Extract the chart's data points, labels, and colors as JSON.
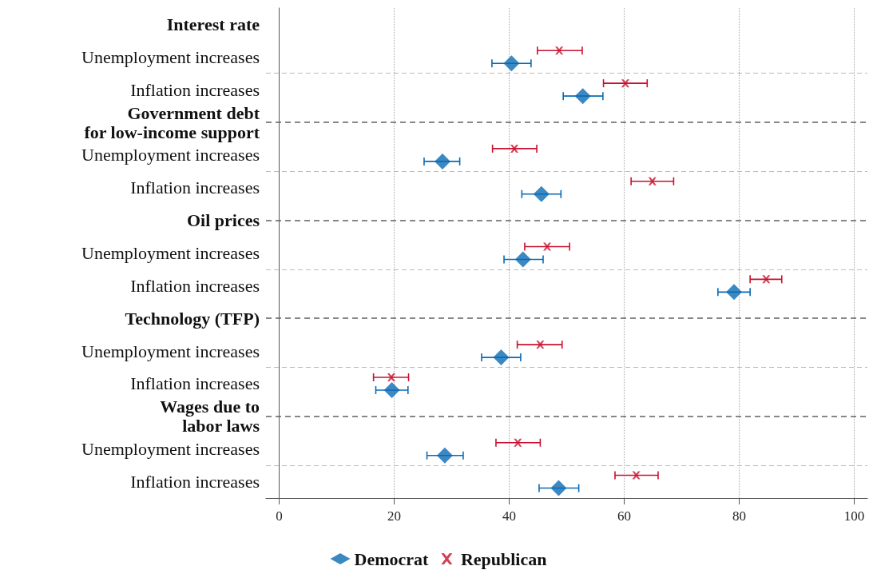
{
  "chart_data": {
    "type": "scatter",
    "orientation": "horizontal",
    "categories": [
      "Interest rate",
      "Unemployment increases",
      "Inflation increases",
      "Government debt\nfor low-income support",
      "Unemployment increases",
      "Inflation increases",
      "Oil prices",
      "Unemployment increases",
      "Inflation increases",
      "Technology (TFP)",
      "Unemployment increases",
      "Inflation increases",
      "Wages due to\nlabor laws",
      "Unemployment increases",
      "Inflation increases"
    ],
    "series": [
      {
        "name": "Democrat",
        "color": "#0a6ab4",
        "marker": "diamond",
        "values": [
          null,
          40.4,
          52.8,
          null,
          28.4,
          45.6,
          null,
          42.4,
          79.1,
          null,
          38.6,
          19.6,
          null,
          28.8,
          48.6
        ],
        "errors": [
          null,
          [
            37.0,
            43.8
          ],
          [
            49.4,
            56.3
          ],
          null,
          [
            25.2,
            31.4
          ],
          [
            42.2,
            49.0
          ],
          null,
          [
            39.1,
            45.9
          ],
          [
            76.3,
            81.9
          ],
          null,
          [
            35.2,
            42.0
          ],
          [
            16.8,
            22.4
          ],
          null,
          [
            25.7,
            32.0
          ],
          [
            45.2,
            52.1
          ]
        ]
      },
      {
        "name": "Republican",
        "color": "#c8102e",
        "marker": "cross",
        "values": [
          null,
          48.7,
          60.2,
          null,
          40.9,
          64.9,
          null,
          46.6,
          84.7,
          null,
          45.4,
          19.5,
          null,
          41.5,
          62.1
        ],
        "errors": [
          null,
          [
            44.9,
            52.7
          ],
          [
            56.4,
            64.0
          ],
          null,
          [
            37.1,
            44.8
          ],
          [
            61.2,
            68.6
          ],
          null,
          [
            42.7,
            50.5
          ],
          [
            81.9,
            87.4
          ],
          null,
          [
            41.4,
            49.2
          ],
          [
            16.4,
            22.5
          ],
          null,
          [
            37.7,
            45.4
          ],
          [
            58.4,
            65.9
          ]
        ]
      }
    ],
    "xlim": [
      -2.3,
      102.3
    ],
    "xticks": [
      0,
      20,
      40,
      60,
      80,
      100
    ],
    "grid": true,
    "legend": "bottom",
    "ref_lines": [
      {
        "axis": "y",
        "value": "Government debt\nfor low-income support",
        "color": "#606060",
        "line_style": "dashed"
      },
      {
        "axis": "y",
        "value": "Oil prices",
        "color": "#606060",
        "line_style": "dashed"
      },
      {
        "axis": "y",
        "value": "Technology (TFP)",
        "color": "#606060",
        "line_style": "dashed"
      },
      {
        "axis": "y",
        "value": "Wages due to\nlabor laws",
        "color": "#606060",
        "line_style": "dashed"
      }
    ]
  }
}
